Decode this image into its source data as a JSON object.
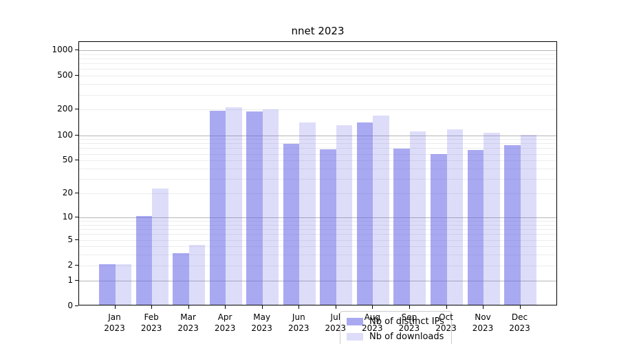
{
  "title": "nnet 2023",
  "chart_data": {
    "type": "bar",
    "title": "nnet 2023",
    "categories": [
      "Jan",
      "Feb",
      "Mar",
      "Apr",
      "May",
      "Jun",
      "Jul",
      "Aug",
      "Sep",
      "Oct",
      "Nov",
      "Dec"
    ],
    "x_year_label": "2023",
    "series": [
      {
        "name": "Nb of distinct IPs",
        "values": [
          2,
          10,
          3,
          187,
          184,
          76,
          66,
          136,
          67,
          57,
          64,
          74
        ]
      },
      {
        "name": "Nb of downloads",
        "values": [
          2,
          22,
          4,
          205,
          194,
          136,
          127,
          165,
          107,
          112,
          103,
          98
        ]
      }
    ],
    "xlabel": "",
    "ylabel": "",
    "y_scale": "log10(value+1)",
    "yticks": [
      0,
      1,
      2,
      5,
      10,
      20,
      50,
      100,
      200,
      500,
      1000
    ],
    "ylim": [
      0,
      1250
    ],
    "grid": true,
    "legend_position": "inside-bottom-center"
  },
  "colors": {
    "bar_ips": "#6363e68c",
    "bar_downloads": "#6363e638",
    "grid_major": "#b5b5b5",
    "grid_minor": "#ececec",
    "frame": "#000000",
    "legend_border": "#cccccc"
  }
}
